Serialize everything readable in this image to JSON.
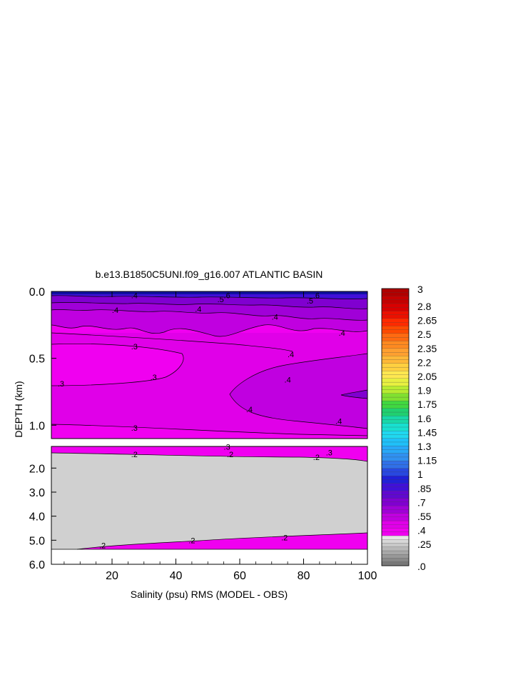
{
  "chart_data": {
    "type": "heatmap",
    "title": "b.e13.B1850C5UNI.f09_g16.007 ATLANTIC BASIN",
    "xlabel": "Salinity (psu) RMS (MODEL - OBS)",
    "ylabel": "DEPTH (km)",
    "x_ticks": [
      "20",
      "40",
      "60",
      "80",
      "100"
    ],
    "xlim": [
      1,
      100
    ],
    "upper_panel": {
      "y_ticks": [
        "0.0",
        "0.5",
        "1.0"
      ],
      "ylim": [
        0,
        1.1
      ]
    },
    "lower_panel": {
      "y_ticks": [
        "2.0",
        "3.0",
        "4.0",
        "5.0",
        "6.0"
      ],
      "ylim": [
        1.1,
        6.0
      ]
    },
    "contour_labels": [
      {
        "text": ".4",
        "x": 27,
        "d": 0.03
      },
      {
        "text": ".6",
        "x": 56,
        "d": 0.03
      },
      {
        "text": ".5",
        "x": 54,
        "d": 0.06
      },
      {
        "text": ".6",
        "x": 84,
        "d": 0.03
      },
      {
        "text": ".5",
        "x": 82,
        "d": 0.07
      },
      {
        "text": ".4",
        "x": 21,
        "d": 0.14
      },
      {
        "text": ".4",
        "x": 47,
        "d": 0.13
      },
      {
        "text": ".4",
        "x": 71,
        "d": 0.19
      },
      {
        "text": ".4",
        "x": 92,
        "d": 0.31
      },
      {
        "text": ".3",
        "x": 27,
        "d": 0.41
      },
      {
        "text": ".4",
        "x": 76,
        "d": 0.47
      },
      {
        "text": ".3",
        "x": 4,
        "d": 0.69
      },
      {
        "text": ".3",
        "x": 33,
        "d": 0.64
      },
      {
        "text": ".4",
        "x": 75,
        "d": 0.66
      },
      {
        "text": ".4",
        "x": 63,
        "d": 0.88
      },
      {
        "text": ".4",
        "x": 91,
        "d": 0.97
      },
      {
        "text": ".3",
        "x": 27,
        "d": 1.02
      },
      {
        "text": ".3",
        "x": 56,
        "d": 1.11
      },
      {
        "text": ".3",
        "x": 88,
        "d": 1.35
      },
      {
        "text": ".2",
        "x": 27,
        "d": 1.43
      },
      {
        "text": ".2",
        "x": 57,
        "d": 1.43
      },
      {
        "text": ".2",
        "x": 84,
        "d": 1.55
      },
      {
        "text": ".2",
        "x": 17,
        "d": 5.22
      },
      {
        "text": ".2",
        "x": 45,
        "d": 5.0
      },
      {
        "text": ".2",
        "x": 74,
        "d": 4.88
      }
    ],
    "colorbar": {
      "labels": [
        "3",
        "2.8",
        "2.65",
        "2.5",
        "2.35",
        "2.2",
        "2.05",
        "1.9",
        "1.75",
        "1.6",
        "1.45",
        "1.3",
        "1.15",
        "1",
        ".85",
        ".7",
        ".55",
        ".4",
        ".25",
        ".0"
      ],
      "colors": [
        "#b00000",
        "#c40000",
        "#d80000",
        "#ec1000",
        "#ff2a00",
        "#ff4a00",
        "#ff6a10",
        "#ff8a20",
        "#ffa030",
        "#ffb838",
        "#ffd040",
        "#ffe850",
        "#e8f040",
        "#b8ec30",
        "#80e030",
        "#40d840",
        "#20d070",
        "#18d8a8",
        "#18e0d0",
        "#20d8f0",
        "#20c0f8",
        "#28a8f8",
        "#3090f0",
        "#3070e8",
        "#2848e0",
        "#2020d8",
        "#4010d8",
        "#6008d0",
        "#8000d0",
        "#a000d8",
        "#c000e0",
        "#e000e8",
        "#f000f0"
      ]
    }
  }
}
